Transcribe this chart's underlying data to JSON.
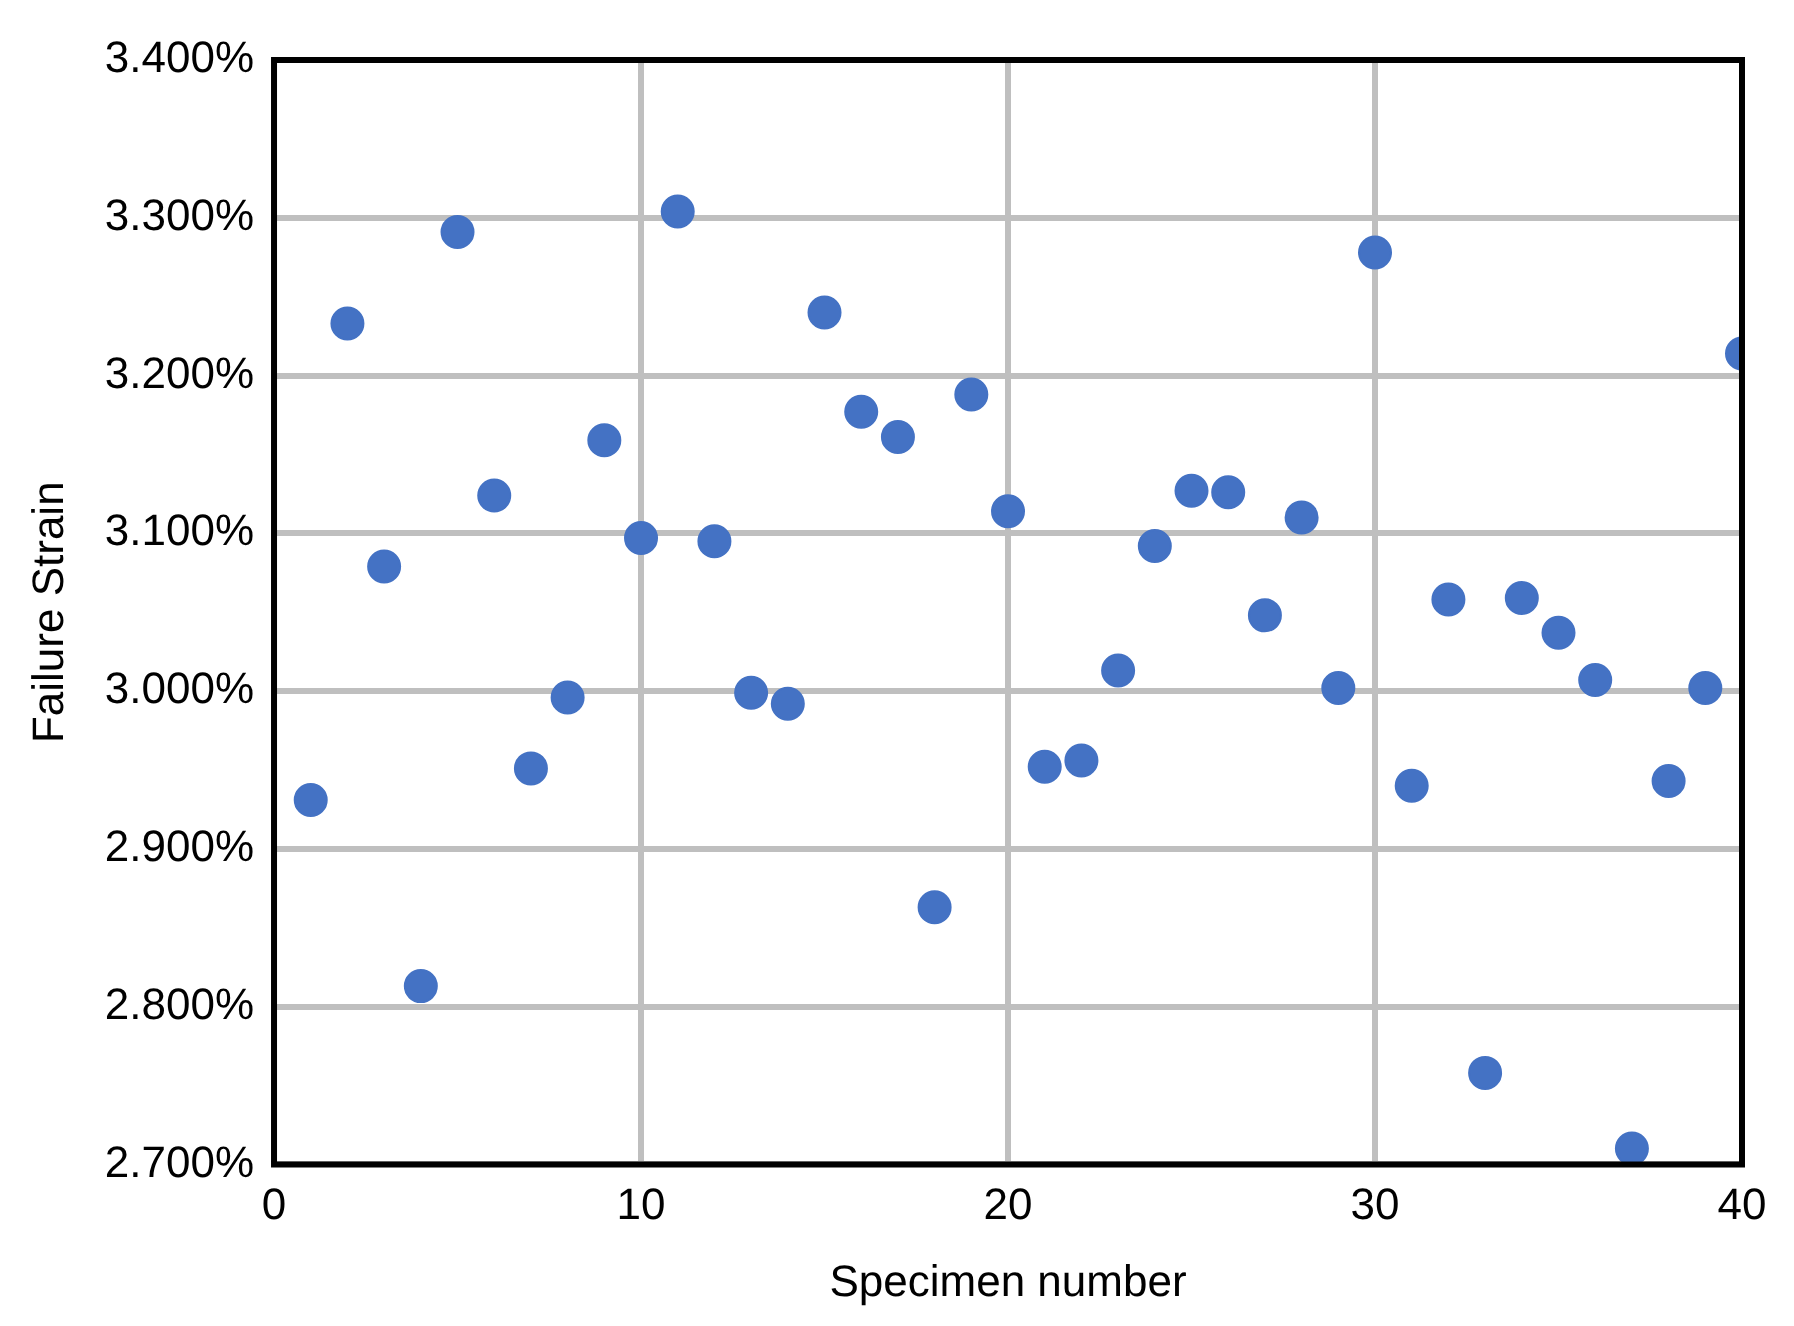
{
  "chart_data": {
    "type": "scatter",
    "xlabel": "Specimen number",
    "ylabel": "Failure Strain",
    "x": [
      1,
      2,
      3,
      4,
      5,
      6,
      7,
      8,
      9,
      10,
      11,
      12,
      13,
      14,
      15,
      16,
      17,
      18,
      19,
      20,
      21,
      22,
      23,
      24,
      25,
      26,
      27,
      28,
      29,
      30,
      31,
      32,
      33,
      34,
      35,
      36,
      37,
      38,
      39,
      40
    ],
    "series": [
      {
        "color": "#4472c4",
        "values": [
          2.931,
          3.233,
          3.079,
          2.813,
          3.291,
          3.124,
          2.951,
          2.996,
          3.159,
          3.097,
          3.304,
          3.095,
          2.999,
          2.992,
          3.24,
          3.177,
          3.161,
          2.863,
          3.188,
          3.114,
          2.952,
          2.956,
          3.013,
          3.092,
          3.127,
          3.126,
          3.048,
          3.11,
          3.002,
          3.278,
          2.94,
          3.058,
          2.758,
          3.059,
          3.037,
          3.007,
          2.71,
          2.943,
          3.002,
          3.214
        ]
      }
    ],
    "xlim": [
      0,
      40
    ],
    "xticks": [
      0,
      10,
      20,
      30,
      40
    ],
    "ylim": [
      2.7,
      3.4
    ],
    "yticks": [
      {
        "value": 2.7,
        "label": "2.700%"
      },
      {
        "value": 2.8,
        "label": "2.800%"
      },
      {
        "value": 2.9,
        "label": "2.900%"
      },
      {
        "value": 3.0,
        "label": "3.000%"
      },
      {
        "value": 3.1,
        "label": "3.100%"
      },
      {
        "value": 3.2,
        "label": "3.200%"
      },
      {
        "value": 3.3,
        "label": "3.300%"
      },
      {
        "value": 3.4,
        "label": "3.400%"
      }
    ],
    "grid": true,
    "marker": "circle",
    "legend": false
  }
}
